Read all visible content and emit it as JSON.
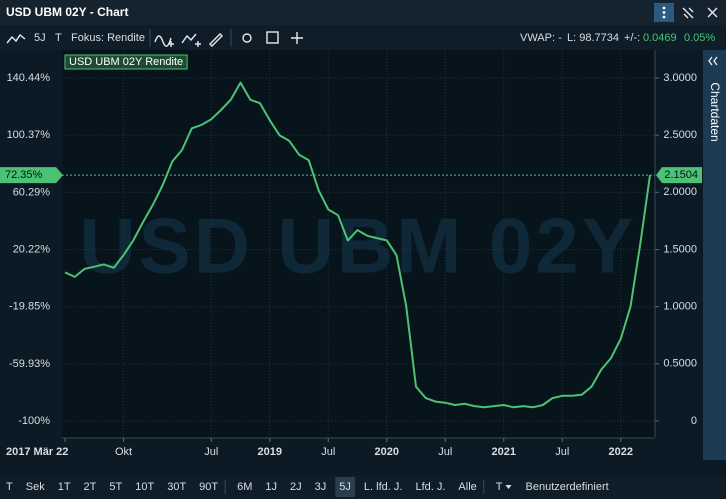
{
  "window": {
    "title": "USD UBM 02Y - Chart"
  },
  "toolbar": {
    "period": "5J",
    "type": "T",
    "focus": "Fokus: Rendite",
    "vwap": "VWAP: -",
    "last": "L: 98.7734",
    "change_label": "+/-:",
    "change": "0.0469",
    "change_pct": "0.05%"
  },
  "side_tab": "Chartdaten",
  "range_buttons": [
    {
      "label": "T",
      "active": false
    },
    {
      "label": "Sek",
      "active": false
    },
    {
      "label": "1T",
      "active": false
    },
    {
      "label": "2T",
      "active": false
    },
    {
      "label": "5T",
      "active": false
    },
    {
      "label": "10T",
      "active": false
    },
    {
      "label": "30T",
      "active": false
    },
    {
      "label": "90T",
      "active": false
    },
    {
      "label": "6M",
      "active": false
    },
    {
      "label": "1J",
      "active": false
    },
    {
      "label": "2J",
      "active": false
    },
    {
      "label": "3J",
      "active": false
    },
    {
      "label": "5J",
      "active": true
    },
    {
      "label": "L. lfd. J.",
      "active": false
    },
    {
      "label": "Lfd. J.",
      "active": false
    },
    {
      "label": "Alle",
      "active": false
    },
    {
      "label": "T",
      "active": false
    },
    {
      "label": "Benutzerdefiniert",
      "active": false
    }
  ],
  "chart_data": {
    "type": "line",
    "watermark": "USD UBM 02Y",
    "grid": true,
    "categories": [
      "2017 Mär 22",
      null,
      null,
      null,
      null,
      null,
      "Okt",
      null,
      null,
      null,
      null,
      null,
      null,
      null,
      null,
      "Jul",
      null,
      null,
      null,
      null,
      null,
      "2019",
      null,
      null,
      null,
      null,
      null,
      "Jul",
      null,
      null,
      null,
      null,
      null,
      "2020",
      null,
      null,
      null,
      null,
      null,
      "Jul",
      null,
      null,
      null,
      null,
      null,
      "2021",
      null,
      null,
      null,
      null,
      null,
      "Jul",
      null,
      null,
      null,
      null,
      null,
      "2022",
      null,
      null,
      null
    ],
    "series": [
      {
        "name": "USD UBM 02Y Rendite",
        "color": "#4cc275",
        "values": [
          1.3,
          1.26,
          1.33,
          1.35,
          1.37,
          1.34,
          1.45,
          1.58,
          1.74,
          1.89,
          2.06,
          2.27,
          2.37,
          2.56,
          2.59,
          2.64,
          2.72,
          2.81,
          2.96,
          2.81,
          2.78,
          2.63,
          2.5,
          2.45,
          2.33,
          2.28,
          2.02,
          1.85,
          1.8,
          1.58,
          1.67,
          1.62,
          1.6,
          1.58,
          1.45,
          1.0,
          0.3,
          0.2,
          0.17,
          0.16,
          0.14,
          0.15,
          0.13,
          0.12,
          0.13,
          0.14,
          0.12,
          0.13,
          0.12,
          0.14,
          0.2,
          0.22,
          0.22,
          0.23,
          0.3,
          0.45,
          0.55,
          0.72,
          1.0,
          1.55,
          2.1504
        ]
      }
    ],
    "ylim": [
      -0.14,
      3.245
    ],
    "yticks": [
      {
        "value": 0,
        "label": "0"
      },
      {
        "value": 0.5,
        "label": "0.5000"
      },
      {
        "value": 1,
        "label": "1.0000"
      },
      {
        "value": 1.5,
        "label": "1.5000"
      },
      {
        "value": 2,
        "label": "2.0000"
      },
      {
        "value": 2.5,
        "label": "2.5000"
      },
      {
        "value": 3,
        "label": "3.0000"
      }
    ],
    "y2lim": [
      -111.2,
      160.1
    ],
    "y2ticks": [
      {
        "value": -100,
        "label": "-100%"
      },
      {
        "value": -59.93,
        "label": "-59.93%"
      },
      {
        "value": -19.85,
        "label": "-19.85%"
      },
      {
        "value": 20.22,
        "label": "20.22%"
      },
      {
        "value": 60.29,
        "label": "60.29%"
      },
      {
        "value": 100.37,
        "label": "100.37%"
      },
      {
        "value": 140.44,
        "label": "140.44%"
      }
    ],
    "current": {
      "value": 2.1504,
      "y2_label": "72.35%"
    }
  }
}
